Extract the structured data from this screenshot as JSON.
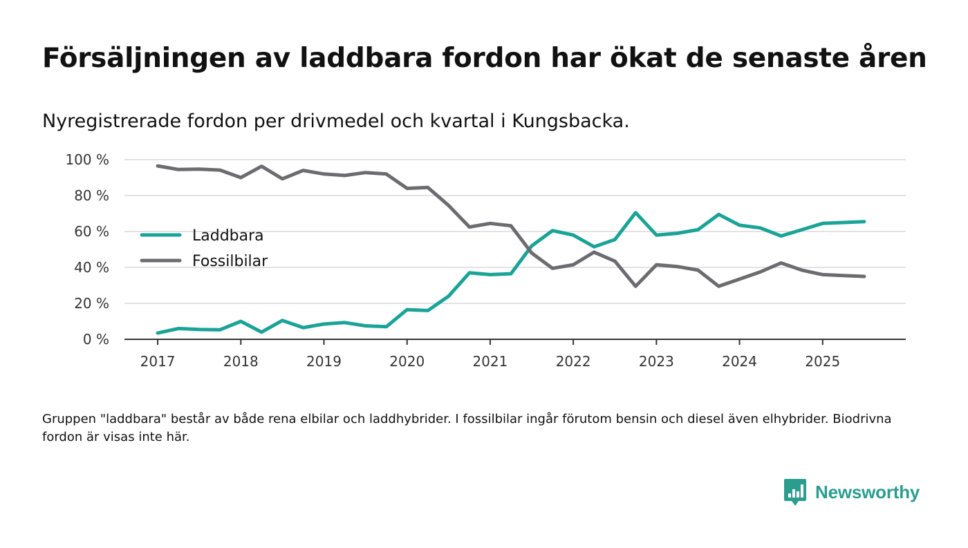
{
  "title": "Försäljningen av laddbara fordon har ökat de senaste åren",
  "subtitle": "Nyregistrerade fordon per drivmedel och kvartal i Kungsbacka.",
  "footnote": "Gruppen \"laddbara\" består av både rena elbilar och laddhybrider. I fossilbilar ingår förutom bensin och diesel även elhybrider. Biodrivna fordon är visas inte här.",
  "brand": {
    "name": "Newsworthy",
    "color": "#2a9d8f",
    "icon": "bar-chart-speech-bubble-icon"
  },
  "chart_data": {
    "type": "line",
    "title": "",
    "xlabel": "",
    "ylabel": "",
    "xlim": [
      2016.6,
      2026.0
    ],
    "ylim": [
      0,
      100
    ],
    "y_ticks": [
      0,
      20,
      40,
      60,
      80,
      100
    ],
    "y_tick_labels": [
      "0 %",
      "20 %",
      "40 %",
      "60 %",
      "80 %",
      "100 %"
    ],
    "x_ticks": [
      2017,
      2018,
      2019,
      2020,
      2021,
      2022,
      2023,
      2024,
      2025
    ],
    "x_tick_labels": [
      "2017",
      "2018",
      "2019",
      "2020",
      "2021",
      "2022",
      "2023",
      "2024",
      "2025"
    ],
    "grid": true,
    "legend_position": "left",
    "x": [
      2017.0,
      2017.25,
      2017.5,
      2017.75,
      2018.0,
      2018.25,
      2018.5,
      2018.75,
      2019.0,
      2019.25,
      2019.5,
      2019.75,
      2020.0,
      2020.25,
      2020.5,
      2020.75,
      2021.0,
      2021.25,
      2021.5,
      2021.75,
      2022.0,
      2022.25,
      2022.5,
      2022.75,
      2023.0,
      2023.25,
      2023.5,
      2023.75,
      2024.0,
      2024.25,
      2024.5,
      2024.75,
      2025.0,
      2025.25,
      2025.5
    ],
    "series": [
      {
        "name": "Laddbara",
        "color": "#1aa397",
        "values": [
          3.5,
          6,
          5.5,
          5.3,
          10,
          4,
          10.5,
          6.5,
          8.5,
          9.3,
          7.5,
          7,
          16.5,
          16,
          24,
          37,
          36,
          36.5,
          52,
          60.5,
          58,
          51.5,
          55.5,
          70.5,
          58,
          59,
          61,
          69.5,
          63.5,
          62,
          57.5,
          61,
          64.5,
          65,
          65.5
        ]
      },
      {
        "name": "Fossilbilar",
        "color": "#6b6b70",
        "values": [
          96.5,
          94.5,
          94.7,
          94.2,
          90,
          96.3,
          89.3,
          94,
          92,
          91.2,
          92.8,
          92,
          84,
          84.5,
          74.5,
          62.5,
          64.5,
          63.2,
          48,
          39.5,
          41.5,
          48.5,
          43.5,
          29.5,
          41.5,
          40.5,
          38.5,
          29.5,
          33.5,
          37.5,
          42.5,
          38.5,
          36,
          35.5,
          35
        ]
      }
    ]
  }
}
